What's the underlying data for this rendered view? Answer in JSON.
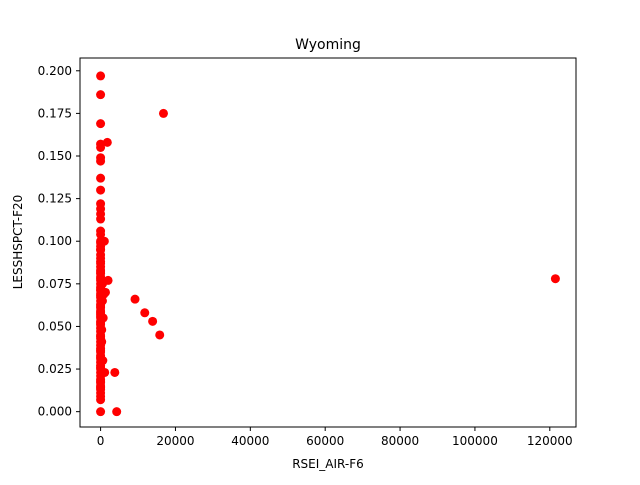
{
  "chart_data": {
    "type": "scatter",
    "title": "Wyoming",
    "xlabel": "RSEI_AIR-F6",
    "ylabel": "LESSHSPCT-F20",
    "xlim": [
      -5500,
      127000
    ],
    "ylim": [
      -0.009,
      0.2075
    ],
    "xticks": [
      0,
      20000,
      40000,
      60000,
      80000,
      100000,
      120000
    ],
    "xtick_labels": [
      "0",
      "20000",
      "40000",
      "60000",
      "80000",
      "100000",
      "120000"
    ],
    "yticks": [
      0.0,
      0.025,
      0.05,
      0.075,
      0.1,
      0.125,
      0.15,
      0.175,
      0.2
    ],
    "ytick_labels": [
      "0.000",
      "0.025",
      "0.050",
      "0.075",
      "0.100",
      "0.125",
      "0.150",
      "0.175",
      "0.200"
    ],
    "grid": false,
    "legend": "none",
    "marker_color": "#ff0000",
    "series": [
      {
        "x": [
          0,
          0,
          0,
          0,
          0,
          0,
          0,
          0,
          0,
          0,
          0,
          0,
          0,
          0,
          0,
          0,
          0,
          0,
          0,
          0,
          0,
          0,
          0,
          0,
          0,
          0,
          0,
          0,
          0,
          0,
          0,
          0,
          0,
          0,
          0,
          0,
          0,
          0,
          0,
          0,
          0,
          0,
          0,
          0,
          0,
          0,
          0,
          0,
          0,
          0,
          0,
          0,
          0,
          0,
          0,
          0,
          0,
          0,
          0,
          0,
          0,
          0,
          0,
          0,
          0,
          0,
          0,
          0,
          0,
          0,
          0,
          0,
          0,
          0,
          0,
          0,
          0,
          0,
          0,
          200,
          200,
          300,
          300,
          500,
          500,
          600,
          700,
          900,
          1000,
          1100,
          1300,
          1800,
          2000,
          3800,
          4300,
          9200,
          11800,
          13900,
          15800,
          16800,
          121500
        ],
        "y": [
          0.197,
          0.186,
          0.169,
          0.157,
          0.155,
          0.149,
          0.147,
          0.137,
          0.13,
          0.122,
          0.119,
          0.116,
          0.113,
          0.106,
          0.104,
          0.1,
          0.097,
          0.095,
          0.092,
          0.09,
          0.087,
          0.085,
          0.083,
          0.081,
          0.079,
          0.077,
          0.075,
          0.073,
          0.071,
          0.069,
          0.067,
          0.065,
          0.063,
          0.061,
          0.059,
          0.057,
          0.055,
          0.053,
          0.051,
          0.049,
          0.047,
          0.045,
          0.043,
          0.041,
          0.039,
          0.037,
          0.035,
          0.033,
          0.031,
          0.029,
          0.027,
          0.025,
          0.023,
          0.021,
          0.019,
          0.017,
          0.015,
          0.013,
          0.011,
          0.009,
          0.007,
          0.0,
          0.032,
          0.052,
          0.056,
          0.062,
          0.072,
          0.078,
          0.082,
          0.088,
          0.095,
          0.099,
          0.014,
          0.018,
          0.026,
          0.036,
          0.044,
          0.058,
          0.068,
          0.07,
          0.022,
          0.041,
          0.048,
          0.065,
          0.075,
          0.03,
          0.055,
          0.069,
          0.1,
          0.023,
          0.07,
          0.158,
          0.077,
          0.023,
          0.0,
          0.066,
          0.058,
          0.053,
          0.045,
          0.175,
          0.078
        ]
      }
    ]
  }
}
